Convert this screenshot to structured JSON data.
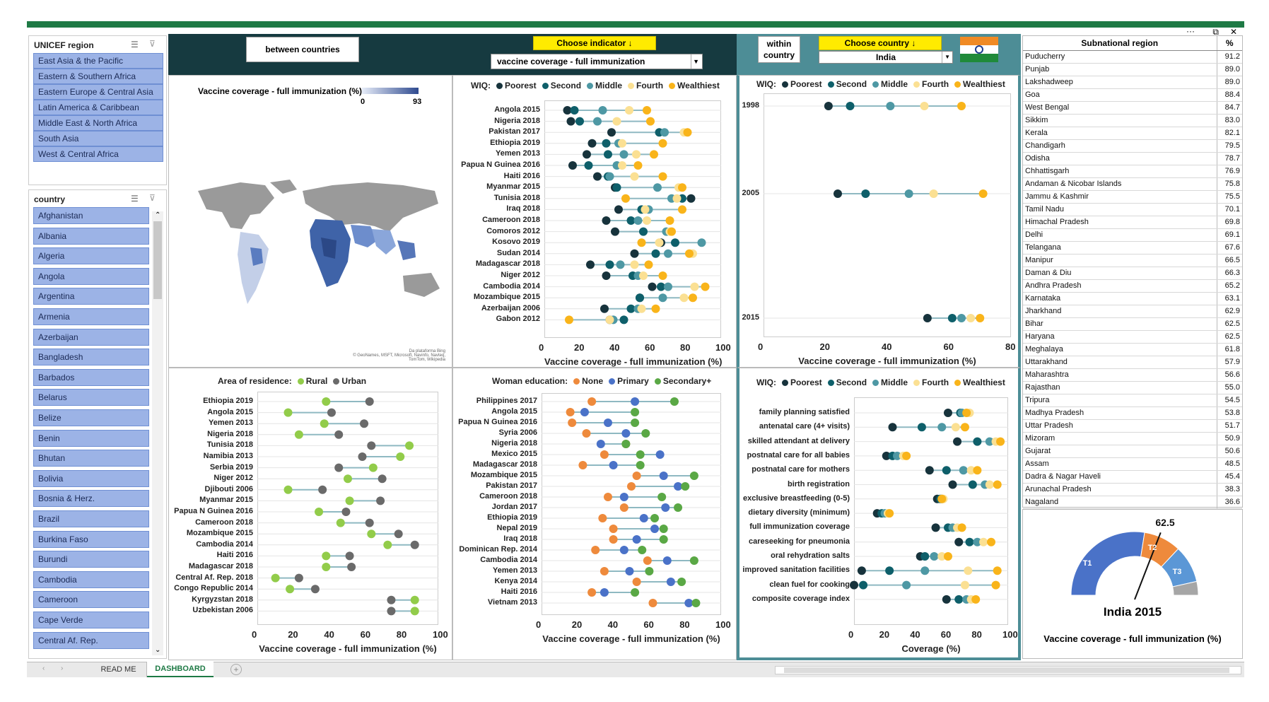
{
  "window": {
    "more": "···",
    "restore": "⧉",
    "close": "✕"
  },
  "colors": {
    "poorest": "#17333c",
    "second": "#0e5f6a",
    "middle": "#4e98a4",
    "fourth": "#fbe093",
    "wealthiest": "#f9b41a",
    "rural": "#92cc4a",
    "urban": "#6a6a6a",
    "none": "#ee8a3c",
    "primary": "#4a72c8",
    "secondary": "#5aa845"
  },
  "region_slicer": {
    "title": "UNICEF region",
    "items": [
      "East Asia & the Pacific",
      "Eastern & Southern Africa",
      "Eastern Europe & Central Asia",
      "Latin America & Caribbean",
      "Middle East & North Africa",
      "South Asia",
      "West & Central Africa"
    ]
  },
  "country_slicer": {
    "title": "country",
    "items": [
      "Afghanistan",
      "Albania",
      "Algeria",
      "Angola",
      "Argentina",
      "Armenia",
      "Azerbaijan",
      "Bangladesh",
      "Barbados",
      "Belarus",
      "Belize",
      "Benin",
      "Bhutan",
      "Bolivia",
      "Bosnia & Herz.",
      "Brazil",
      "Burkina Faso",
      "Burundi",
      "Cambodia",
      "Cameroon",
      "Cape Verde",
      "Central Af. Rep."
    ]
  },
  "header": {
    "between": "between countries",
    "choose_indicator": "Choose indicator",
    "arrow": "↓",
    "indicator_value": "vaccine coverage - full immunization",
    "within_line1": "within",
    "within_line2": "country",
    "choose_country": "Choose country",
    "country_value": "India"
  },
  "map": {
    "title": "Vaccine coverage - full immunization (%)",
    "legend_min": "0",
    "legend_max": "93",
    "credit1": "Da plataforma Bing",
    "credit2": "© GeoNames, MSFT, Microsoft, Navinfo, Navteq, TomTom, Wikipedia"
  },
  "wiq_legend": {
    "label": "WIQ:",
    "items": [
      "Poorest",
      "Second",
      "Middle",
      "Fourth",
      "Wealthiest"
    ]
  },
  "chart_data": [
    {
      "type": "scatter",
      "title": "WIQ between countries",
      "xlabel": "Vaccine coverage - full immunization (%)",
      "xlim": [
        0,
        100
      ],
      "xticks": [
        "0",
        "20",
        "40",
        "60",
        "80",
        "100"
      ],
      "categories": [
        "Angola 2015",
        "Nigeria 2018",
        "Pakistan 2017",
        "Ethiopia 2019",
        "Yemen 2013",
        "Papua N Guinea 2016",
        "Haiti 2016",
        "Myanmar 2015",
        "Tunisia 2018",
        "Iraq 2018",
        "Cameroon 2018",
        "Comoros 2012",
        "Kosovo 2019",
        "Sudan 2014",
        "Madagascar 2018",
        "Niger 2012",
        "Cambodia 2014",
        "Mozambique 2015",
        "Azerbaijan 2006",
        "Gabon 2012"
      ],
      "series": [
        {
          "name": "Poorest",
          "values": [
            13,
            15,
            38,
            27,
            24,
            16,
            30,
            40,
            83,
            42,
            35,
            40,
            66,
            51,
            26,
            35,
            61,
            54,
            34,
            37
          ]
        },
        {
          "name": "Second",
          "values": [
            17,
            20,
            65,
            35,
            36,
            25,
            36,
            41,
            78,
            55,
            49,
            56,
            74,
            63,
            37,
            50,
            66,
            54,
            49,
            45
          ]
        },
        {
          "name": "Middle",
          "values": [
            33,
            30,
            68,
            42,
            45,
            41,
            37,
            64,
            72,
            59,
            53,
            69,
            89,
            70,
            43,
            53,
            70,
            67,
            53,
            39
          ]
        },
        {
          "name": "Fourth",
          "values": [
            48,
            41,
            79,
            44,
            52,
            44,
            51,
            76,
            75,
            57,
            58,
            71,
            65,
            84,
            51,
            56,
            85,
            79,
            55,
            37
          ]
        },
        {
          "name": "Wealthiest",
          "values": [
            58,
            60,
            81,
            67,
            62,
            53,
            67,
            78,
            46,
            78,
            71,
            72,
            55,
            82,
            59,
            67,
            91,
            84,
            63,
            14
          ]
        }
      ]
    },
    {
      "type": "scatter",
      "title": "WIQ within country",
      "xlabel": "Vaccine coverage - full immunization (%)",
      "xlim": [
        0,
        80
      ],
      "xticks": [
        "0",
        "20",
        "40",
        "60",
        "80"
      ],
      "categories": [
        "1998",
        "2005",
        "2015"
      ],
      "series": [
        {
          "name": "Poorest",
          "values": [
            21,
            24,
            53
          ]
        },
        {
          "name": "Second",
          "values": [
            28,
            33,
            61
          ]
        },
        {
          "name": "Middle",
          "values": [
            41,
            47,
            64
          ]
        },
        {
          "name": "Fourth",
          "values": [
            52,
            55,
            67
          ]
        },
        {
          "name": "Wealthiest",
          "values": [
            64,
            71,
            70
          ]
        }
      ]
    },
    {
      "type": "scatter",
      "title": "Area of residence",
      "legend_label": "Area of residence:",
      "xlabel": "Vaccine coverage - full immunization (%)",
      "xlim": [
        0,
        100
      ],
      "xticks": [
        "0",
        "20",
        "40",
        "60",
        "80",
        "100"
      ],
      "categories": [
        "Ethiopia 2019",
        "Angola 2015",
        "Yemen 2013",
        "Nigeria 2018",
        "Tunisia 2018",
        "Namibia 2013",
        "Serbia 2019",
        "Niger 2012",
        "Djibouti 2006",
        "Myanmar 2015",
        "Papua N Guinea 2016",
        "Cameroon 2018",
        "Mozambique 2015",
        "Cambodia 2014",
        "Haiti 2016",
        "Madagascar 2018",
        "Central Af. Rep. 2018",
        "Congo Republic 2014",
        "Kyrgyzstan 2018",
        "Uzbekistan 2006"
      ],
      "series": [
        {
          "name": "Rural",
          "values": [
            38,
            17,
            37,
            23,
            84,
            79,
            64,
            50,
            17,
            51,
            34,
            46,
            63,
            72,
            38,
            38,
            10,
            18,
            87,
            87
          ]
        },
        {
          "name": "Urban",
          "values": [
            62,
            41,
            59,
            45,
            63,
            58,
            45,
            69,
            36,
            68,
            49,
            62,
            78,
            87,
            51,
            52,
            23,
            32,
            74,
            74
          ]
        }
      ]
    },
    {
      "type": "scatter",
      "title": "Woman education",
      "legend_label": "Woman education:",
      "xlabel": "Vaccine coverage - full immunization (%)",
      "xlim": [
        0,
        100
      ],
      "xticks": [
        "0",
        "20",
        "40",
        "60",
        "80",
        "100"
      ],
      "categories": [
        "Philippines 2017",
        "Angola 2015",
        "Papua N Guinea 2016",
        "Syria 2006",
        "Nigeria 2018",
        "Mexico 2015",
        "Madagascar 2018",
        "Mozambique 2015",
        "Pakistan 2017",
        "Cameroon 2018",
        "Jordan 2017",
        "Ethiopia 2019",
        "Nepal 2019",
        "Iraq 2018",
        "Dominican Rep. 2014",
        "Cambodia 2014",
        "Yemen 2013",
        "Kenya 2014",
        "Haiti 2016",
        "Vietnam 2013"
      ],
      "series": [
        {
          "name": "None",
          "values": [
            28,
            16,
            17,
            25,
            47,
            35,
            23,
            53,
            50,
            37,
            46,
            34,
            40,
            40,
            30,
            59,
            35,
            53,
            28,
            62
          ]
        },
        {
          "name": "Primary",
          "values": [
            52,
            24,
            37,
            47,
            33,
            66,
            40,
            68,
            76,
            46,
            69,
            57,
            63,
            53,
            46,
            70,
            49,
            72,
            35,
            82
          ]
        },
        {
          "name": "Secondary+",
          "values": [
            74,
            52,
            52,
            58,
            47,
            55,
            55,
            85,
            80,
            67,
            76,
            63,
            68,
            68,
            56,
            85,
            60,
            78,
            52,
            86
          ]
        }
      ]
    },
    {
      "type": "scatter",
      "title": "WIQ by indicator",
      "xlabel": "Coverage (%)",
      "xlim": [
        0,
        100
      ],
      "xticks": [
        "0",
        "20",
        "40",
        "60",
        "80",
        "100"
      ],
      "categories": [
        "family planning satisfied",
        "antenatal care (4+ visits)",
        "skilled attendant at delivery",
        "postnatal care for all babies",
        "postnatal care for mothers",
        "birth registration",
        "exclusive breastfeeding (0-5)",
        "dietary diversity (minimum)",
        "full immunization coverage",
        "careseeking for pneumonia",
        "oral rehydration salts",
        "improved sanitation facilities",
        "clean fuel for cooking",
        "composite coverage index"
      ],
      "series": [
        {
          "name": "Poorest",
          "values": [
            61,
            25,
            67,
            21,
            49,
            64,
            54,
            15,
            53,
            68,
            43,
            5,
            0,
            60
          ]
        },
        {
          "name": "Second",
          "values": [
            69,
            44,
            80,
            25,
            60,
            77,
            56,
            18,
            61,
            75,
            46,
            23,
            6,
            68
          ]
        },
        {
          "name": "Middle",
          "values": [
            70,
            57,
            88,
            28,
            71,
            85,
            57,
            20,
            64,
            80,
            52,
            46,
            34,
            73
          ]
        },
        {
          "name": "Fourth",
          "values": [
            75,
            66,
            92,
            32,
            76,
            88,
            58,
            22,
            67,
            84,
            57,
            74,
            72,
            76
          ]
        },
        {
          "name": "Wealthiest",
          "values": [
            73,
            72,
            95,
            34,
            80,
            93,
            57,
            23,
            70,
            89,
            61,
            93,
            92,
            79
          ]
        }
      ]
    },
    {
      "type": "gauge",
      "title": "India 2015",
      "subtitle": "Vaccine coverage - full immunization (%)",
      "value": 62.5,
      "max": 100,
      "labels": [
        "T1",
        "T2",
        "T3"
      ]
    }
  ],
  "residence_legend": {
    "label": "Area of residence:",
    "items": [
      "Rural",
      "Urban"
    ]
  },
  "education_legend": {
    "label": "Woman education:",
    "items": [
      "None",
      "Primary",
      "Secondary+"
    ]
  },
  "subnational": {
    "col1": "Subnational region",
    "col2": "%",
    "rows": [
      [
        "Puducherry",
        "91.2"
      ],
      [
        "Punjab",
        "89.0"
      ],
      [
        "Lakshadweep",
        "89.0"
      ],
      [
        "Goa",
        "88.4"
      ],
      [
        "West Bengal",
        "84.7"
      ],
      [
        "Sikkim",
        "83.0"
      ],
      [
        "Kerala",
        "82.1"
      ],
      [
        "Chandigarh",
        "79.5"
      ],
      [
        "Odisha",
        "78.7"
      ],
      [
        "Chhattisgarh",
        "76.9"
      ],
      [
        "Andaman & Nicobar Islands",
        "75.8"
      ],
      [
        "Jammu & Kashmir",
        "75.5"
      ],
      [
        "Tamil Nadu",
        "70.1"
      ],
      [
        "Himachal Pradesh",
        "69.8"
      ],
      [
        "Delhi",
        "69.1"
      ],
      [
        "Telangana",
        "67.6"
      ],
      [
        "Manipur",
        "66.5"
      ],
      [
        "Daman & Diu",
        "66.3"
      ],
      [
        "Andhra Pradesh",
        "65.2"
      ],
      [
        "Karnataka",
        "63.1"
      ],
      [
        "Jharkhand",
        "62.9"
      ],
      [
        "Bihar",
        "62.5"
      ],
      [
        "Haryana",
        "62.5"
      ],
      [
        "Meghalaya",
        "61.8"
      ],
      [
        "Uttarakhand",
        "57.9"
      ],
      [
        "Maharashtra",
        "56.6"
      ],
      [
        "Rajasthan",
        "55.0"
      ],
      [
        "Tripura",
        "54.5"
      ],
      [
        "Madhya Pradesh",
        "53.8"
      ],
      [
        "Uttar Pradesh",
        "51.7"
      ],
      [
        "Mizoram",
        "50.9"
      ],
      [
        "Gujarat",
        "50.6"
      ],
      [
        "Assam",
        "48.5"
      ],
      [
        "Dadra & Nagar Haveli",
        "45.4"
      ],
      [
        "Arunachal Pradesh",
        "38.3"
      ],
      [
        "Nagaland",
        "36.6"
      ]
    ]
  },
  "gauge": {
    "value_label": "62.5",
    "title": "India 2015",
    "subtitle": "Vaccine coverage - full immunization (%)",
    "t1": "T1",
    "t2": "T2",
    "t3": "T3"
  },
  "tabs": {
    "readme": "READ ME",
    "dashboard": "DASHBOARD",
    "add": "+"
  }
}
